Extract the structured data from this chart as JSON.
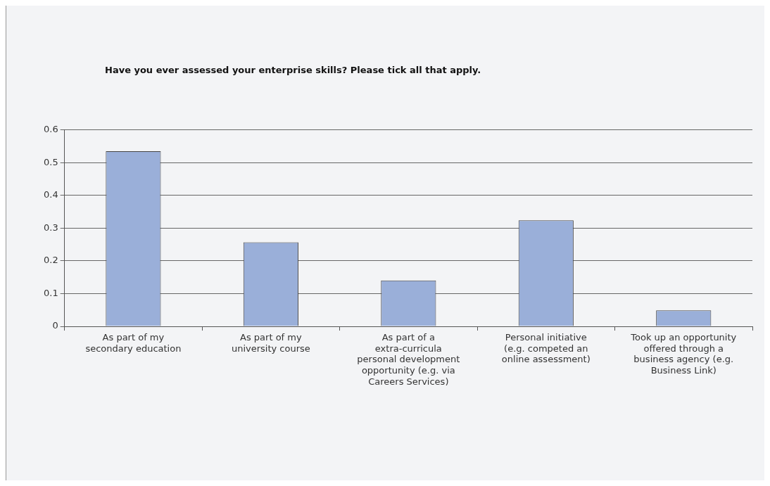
{
  "chart_data": {
    "type": "bar",
    "title": "Have you ever assessed your enterprise skills? Please tick all that apply.",
    "categories": [
      "As part of my secondary education",
      "As part of my university course",
      "As part of a extra-curricula personal development opportunity (e.g. via Careers Services)",
      "Personal initiative (e.g. competed an online assessment)",
      "Took up an opportunity offered through a business agency (e.g. Business Link)"
    ],
    "values": [
      0.535,
      0.257,
      0.14,
      0.324,
      0.049
    ],
    "color": "#9aafd9",
    "ylim": [
      0,
      0.6
    ],
    "yticks": [
      0,
      0.1,
      0.2,
      0.3,
      0.4,
      0.5,
      0.6
    ],
    "grid": "y",
    "legend": false
  }
}
